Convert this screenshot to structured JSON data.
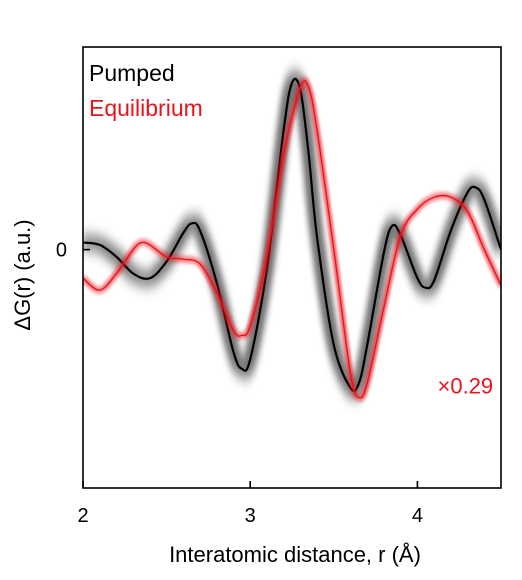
{
  "chart_data": {
    "type": "line",
    "xlabel": "Interatomic distance, r (Å)",
    "ylabel": "ΔG(r) (a.u.)",
    "xlim": [
      2,
      4.5
    ],
    "ylim": [
      -1.0,
      0.85
    ],
    "x_ticks": [
      2,
      3,
      4
    ],
    "y_ticks": [
      {
        "value": 0,
        "label": "0"
      }
    ],
    "legend": {
      "position": "top-left",
      "entries": [
        "Pumped",
        "Equilibrium"
      ]
    },
    "annotations": [
      {
        "text": "×0.29",
        "x": 4.12,
        "y": -0.57,
        "color": "#e8141b"
      }
    ],
    "colors": {
      "Pumped": "#000000",
      "Equilibrium": "#e8141b"
    },
    "grid": false,
    "series": [
      {
        "name": "Pumped",
        "style": "blurred band",
        "x": [
          2.0,
          2.1,
          2.2,
          2.3,
          2.4,
          2.5,
          2.6,
          2.65,
          2.7,
          2.8,
          2.9,
          2.95,
          3.0,
          3.1,
          3.2,
          3.25,
          3.3,
          3.35,
          3.4,
          3.5,
          3.6,
          3.65,
          3.7,
          3.8,
          3.85,
          3.9,
          4.0,
          4.05,
          4.1,
          4.2,
          4.3,
          4.35,
          4.4,
          4.5
        ],
        "y": [
          0.03,
          0.02,
          -0.03,
          -0.1,
          -0.12,
          -0.05,
          0.07,
          0.11,
          0.08,
          -0.14,
          -0.43,
          -0.5,
          -0.46,
          -0.08,
          0.5,
          0.7,
          0.67,
          0.4,
          0.05,
          -0.4,
          -0.58,
          -0.56,
          -0.4,
          -0.01,
          0.1,
          0.06,
          -0.12,
          -0.16,
          -0.13,
          0.08,
          0.24,
          0.26,
          0.21,
          0.0
        ]
      },
      {
        "name": "Equilibrium",
        "x": [
          2.0,
          2.1,
          2.2,
          2.3,
          2.35,
          2.4,
          2.5,
          2.6,
          2.7,
          2.8,
          2.9,
          2.95,
          3.0,
          3.1,
          3.2,
          3.3,
          3.35,
          3.4,
          3.5,
          3.6,
          3.65,
          3.7,
          3.8,
          3.9,
          4.0,
          4.1,
          4.2,
          4.3,
          4.4,
          4.5
        ],
        "y": [
          -0.12,
          -0.17,
          -0.1,
          0.0,
          0.03,
          0.02,
          -0.03,
          -0.04,
          -0.06,
          -0.18,
          -0.34,
          -0.36,
          -0.32,
          -0.03,
          0.4,
          0.68,
          0.68,
          0.5,
          0.0,
          -0.52,
          -0.62,
          -0.56,
          -0.24,
          0.06,
          0.17,
          0.22,
          0.22,
          0.16,
          0.0,
          -0.15
        ]
      }
    ]
  }
}
